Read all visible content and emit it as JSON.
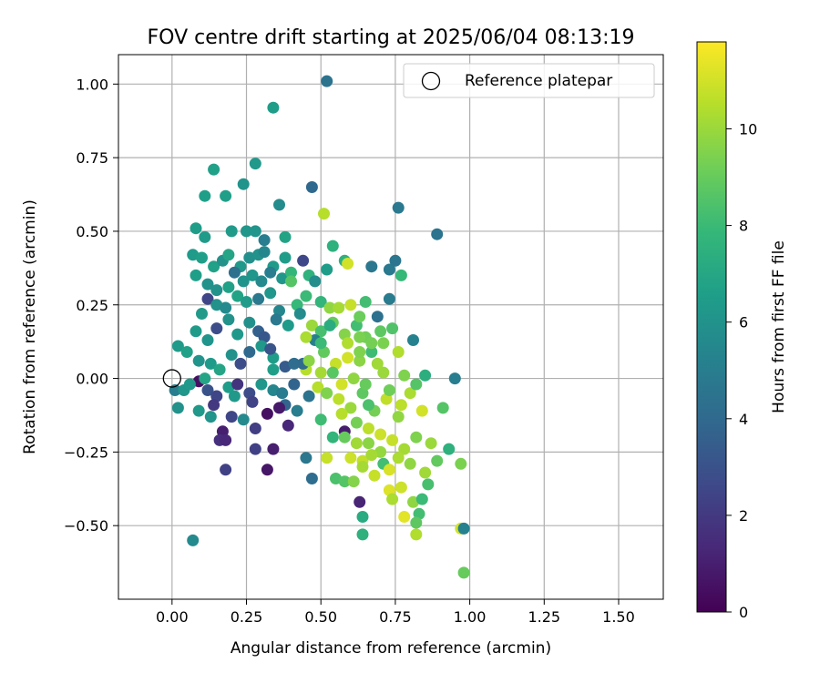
{
  "chart_data": {
    "type": "scatter",
    "title": "FOV centre drift starting at 2025/06/04 08:13:19",
    "xlabel": "Angular distance from reference (arcmin)",
    "ylabel": "Rotation from reference (arcmin)",
    "xlim": [
      -0.18,
      1.65
    ],
    "ylim": [
      -0.75,
      1.1
    ],
    "x_ticks": [
      "0.00",
      "0.25",
      "0.50",
      "0.75",
      "1.00",
      "1.25",
      "1.50"
    ],
    "y_ticks": [
      "−0.50",
      "−0.25",
      "0.00",
      "0.25",
      "0.50",
      "0.75",
      "1.00"
    ],
    "grid": true,
    "legend": {
      "position": "top-right",
      "entries": [
        {
          "label": "Reference platepar",
          "marker": "open-circle",
          "x": 0.0,
          "y": 0.0
        }
      ]
    },
    "colorbar": {
      "label": "Hours from first FF file",
      "range": [
        0,
        11.8
      ],
      "ticks": [
        "0",
        "2",
        "4",
        "6",
        "8",
        "10"
      ],
      "colormap": "viridis"
    },
    "points": [
      [
        0.52,
        1.01,
        4.5
      ],
      [
        0.34,
        0.92,
        6.5
      ],
      [
        0.28,
        0.73,
        6.3
      ],
      [
        0.14,
        0.71,
        6.7
      ],
      [
        0.24,
        0.66,
        6.1
      ],
      [
        0.47,
        0.65,
        4.0
      ],
      [
        0.11,
        0.62,
        6.6
      ],
      [
        0.18,
        0.62,
        6.6
      ],
      [
        0.36,
        0.59,
        5.7
      ],
      [
        0.76,
        0.58,
        4.8
      ],
      [
        0.51,
        0.56,
        10.5
      ],
      [
        0.89,
        0.49,
        4.5
      ],
      [
        0.08,
        0.51,
        6.5
      ],
      [
        0.11,
        0.48,
        6.4
      ],
      [
        0.2,
        0.5,
        6.4
      ],
      [
        0.25,
        0.5,
        6.2
      ],
      [
        0.28,
        0.5,
        6.1
      ],
      [
        0.38,
        0.48,
        6.8
      ],
      [
        0.54,
        0.45,
        7.5
      ],
      [
        0.31,
        0.47,
        5.0
      ],
      [
        0.07,
        0.42,
        6.4
      ],
      [
        0.1,
        0.41,
        6.6
      ],
      [
        0.14,
        0.38,
        6.7
      ],
      [
        0.17,
        0.4,
        6.0
      ],
      [
        0.19,
        0.42,
        6.9
      ],
      [
        0.23,
        0.38,
        6.3
      ],
      [
        0.26,
        0.41,
        5.9
      ],
      [
        0.29,
        0.42,
        6.0
      ],
      [
        0.31,
        0.43,
        5.5
      ],
      [
        0.34,
        0.38,
        6.4
      ],
      [
        0.38,
        0.41,
        6.5
      ],
      [
        0.44,
        0.4,
        2.6
      ],
      [
        0.58,
        0.4,
        7.5
      ],
      [
        0.59,
        0.39,
        11.0
      ],
      [
        0.67,
        0.38,
        4.7
      ],
      [
        0.73,
        0.37,
        4.8
      ],
      [
        0.75,
        0.4,
        4.6
      ],
      [
        0.77,
        0.35,
        7.9
      ],
      [
        0.08,
        0.35,
        6.6
      ],
      [
        0.12,
        0.32,
        6.0
      ],
      [
        0.15,
        0.3,
        6.0
      ],
      [
        0.19,
        0.31,
        6.7
      ],
      [
        0.21,
        0.36,
        4.4
      ],
      [
        0.24,
        0.33,
        6.1
      ],
      [
        0.27,
        0.35,
        6.2
      ],
      [
        0.3,
        0.33,
        5.6
      ],
      [
        0.33,
        0.36,
        5.0
      ],
      [
        0.37,
        0.34,
        6.2
      ],
      [
        0.4,
        0.36,
        7.8
      ],
      [
        0.46,
        0.35,
        7.6
      ],
      [
        0.48,
        0.33,
        5.8
      ],
      [
        0.52,
        0.37,
        6.5
      ],
      [
        0.1,
        0.22,
        6.4
      ],
      [
        0.12,
        0.27,
        2.5
      ],
      [
        0.15,
        0.25,
        6.0
      ],
      [
        0.18,
        0.24,
        5.6
      ],
      [
        0.22,
        0.28,
        6.8
      ],
      [
        0.25,
        0.26,
        6.4
      ],
      [
        0.29,
        0.27,
        4.8
      ],
      [
        0.33,
        0.29,
        6.2
      ],
      [
        0.36,
        0.23,
        5.5
      ],
      [
        0.42,
        0.25,
        7.9
      ],
      [
        0.45,
        0.28,
        8.0
      ],
      [
        0.5,
        0.26,
        7.7
      ],
      [
        0.53,
        0.24,
        9.8
      ],
      [
        0.56,
        0.24,
        10.2
      ],
      [
        0.6,
        0.25,
        10.8
      ],
      [
        0.65,
        0.26,
        8.2
      ],
      [
        0.69,
        0.21,
        4.4
      ],
      [
        0.73,
        0.27,
        4.9
      ],
      [
        0.08,
        0.16,
        6.4
      ],
      [
        0.12,
        0.13,
        6.1
      ],
      [
        0.15,
        0.17,
        2.8
      ],
      [
        0.19,
        0.2,
        6.0
      ],
      [
        0.22,
        0.15,
        6.3
      ],
      [
        0.26,
        0.19,
        5.9
      ],
      [
        0.29,
        0.16,
        3.6
      ],
      [
        0.31,
        0.14,
        3.2
      ],
      [
        0.35,
        0.2,
        4.8
      ],
      [
        0.39,
        0.18,
        6.4
      ],
      [
        0.43,
        0.22,
        5.7
      ],
      [
        0.47,
        0.18,
        10.0
      ],
      [
        0.5,
        0.16,
        8.3
      ],
      [
        0.54,
        0.19,
        9.0
      ],
      [
        0.58,
        0.15,
        9.6
      ],
      [
        0.62,
        0.18,
        8.2
      ],
      [
        0.65,
        0.14,
        9.2
      ],
      [
        0.7,
        0.16,
        8.8
      ],
      [
        0.74,
        0.17,
        8.5
      ],
      [
        0.02,
        0.11,
        6.4
      ],
      [
        0.05,
        0.09,
        6.7
      ],
      [
        0.09,
        0.06,
        6.1
      ],
      [
        0.13,
        0.05,
        6.4
      ],
      [
        0.16,
        0.03,
        6.9
      ],
      [
        0.2,
        0.08,
        6.0
      ],
      [
        0.23,
        0.05,
        2.8
      ],
      [
        0.26,
        0.09,
        4.0
      ],
      [
        0.3,
        0.11,
        6.3
      ],
      [
        0.34,
        0.07,
        6.5
      ],
      [
        0.38,
        0.04,
        3.4
      ],
      [
        0.41,
        0.05,
        4.2
      ],
      [
        0.45,
        0.03,
        10.5
      ],
      [
        0.48,
        0.13,
        5.1
      ],
      [
        0.51,
        0.09,
        8.9
      ],
      [
        0.55,
        0.05,
        10.8
      ],
      [
        0.59,
        0.07,
        11.0
      ],
      [
        0.63,
        0.06,
        9.7
      ],
      [
        0.67,
        0.09,
        8.1
      ],
      [
        0.71,
        0.02,
        10.0
      ],
      [
        0.76,
        0.09,
        10.4
      ],
      [
        0.81,
        0.13,
        5.2
      ],
      [
        0.85,
        0.01,
        7.4
      ],
      [
        0.95,
        0.0,
        5.0
      ],
      [
        0.01,
        -0.04,
        5.0
      ],
      [
        0.04,
        -0.04,
        6.2
      ],
      [
        0.09,
        -0.01,
        0.5
      ],
      [
        0.12,
        -0.04,
        3.0
      ],
      [
        0.15,
        -0.06,
        2.5
      ],
      [
        0.19,
        -0.03,
        6.5
      ],
      [
        0.22,
        -0.02,
        1.8
      ],
      [
        0.26,
        -0.05,
        2.8
      ],
      [
        0.3,
        -0.02,
        6.2
      ],
      [
        0.34,
        -0.04,
        5.5
      ],
      [
        0.38,
        -0.09,
        3.8
      ],
      [
        0.42,
        -0.11,
        5.0
      ],
      [
        0.46,
        -0.06,
        4.5
      ],
      [
        0.49,
        -0.03,
        10.5
      ],
      [
        0.52,
        -0.05,
        9.5
      ],
      [
        0.56,
        -0.07,
        10.6
      ],
      [
        0.6,
        -0.1,
        10.0
      ],
      [
        0.64,
        -0.05,
        8.8
      ],
      [
        0.68,
        -0.11,
        9.3
      ],
      [
        0.72,
        -0.07,
        10.7
      ],
      [
        0.76,
        -0.13,
        9.8
      ],
      [
        0.8,
        -0.05,
        10.3
      ],
      [
        0.84,
        -0.11,
        11.0
      ],
      [
        0.91,
        -0.1,
        8.6
      ],
      [
        0.02,
        -0.1,
        6.0
      ],
      [
        0.09,
        -0.11,
        6.3
      ],
      [
        0.13,
        -0.13,
        6.1
      ],
      [
        0.17,
        -0.18,
        1.0
      ],
      [
        0.2,
        -0.13,
        2.5
      ],
      [
        0.24,
        -0.14,
        5.6
      ],
      [
        0.28,
        -0.17,
        2.2
      ],
      [
        0.32,
        -0.12,
        0.5
      ],
      [
        0.36,
        -0.1,
        0.8
      ],
      [
        0.39,
        -0.16,
        1.3
      ],
      [
        0.5,
        -0.14,
        8.1
      ],
      [
        0.54,
        -0.2,
        7.7
      ],
      [
        0.58,
        -0.18,
        0.9
      ],
      [
        0.62,
        -0.22,
        10.1
      ],
      [
        0.66,
        -0.17,
        10.6
      ],
      [
        0.7,
        -0.25,
        9.9
      ],
      [
        0.74,
        -0.21,
        10.8
      ],
      [
        0.78,
        -0.24,
        10.2
      ],
      [
        0.82,
        -0.2,
        9.5
      ],
      [
        0.87,
        -0.22,
        10.0
      ],
      [
        0.93,
        -0.24,
        7.5
      ],
      [
        0.16,
        -0.21,
        1.6
      ],
      [
        0.18,
        -0.21,
        1.3
      ],
      [
        0.28,
        -0.24,
        2.3
      ],
      [
        0.34,
        -0.24,
        1.0
      ],
      [
        0.45,
        -0.27,
        4.7
      ],
      [
        0.52,
        -0.27,
        10.8
      ],
      [
        0.58,
        -0.2,
        9.0
      ],
      [
        0.64,
        -0.28,
        10.7
      ],
      [
        0.67,
        -0.26,
        10.2
      ],
      [
        0.71,
        -0.29,
        8.2
      ],
      [
        0.76,
        -0.27,
        10.3
      ],
      [
        0.8,
        -0.29,
        9.8
      ],
      [
        0.85,
        -0.32,
        10.1
      ],
      [
        0.89,
        -0.28,
        8.9
      ],
      [
        0.97,
        -0.29,
        9.4
      ],
      [
        0.18,
        -0.31,
        2.3
      ],
      [
        0.32,
        -0.31,
        0.7
      ],
      [
        0.47,
        -0.34,
        4.2
      ],
      [
        0.55,
        -0.34,
        8.4
      ],
      [
        0.58,
        -0.35,
        8.6
      ],
      [
        0.61,
        -0.35,
        9.6
      ],
      [
        0.64,
        -0.3,
        10.2
      ],
      [
        0.68,
        -0.33,
        10.8
      ],
      [
        0.73,
        -0.38,
        11.2
      ],
      [
        0.77,
        -0.37,
        10.9
      ],
      [
        0.81,
        -0.42,
        9.8
      ],
      [
        0.84,
        -0.41,
        8.0
      ],
      [
        0.74,
        -0.41,
        10.3
      ],
      [
        0.78,
        -0.47,
        11.3
      ],
      [
        0.63,
        -0.42,
        1.2
      ],
      [
        0.64,
        -0.47,
        7.2
      ],
      [
        0.83,
        -0.46,
        8.2
      ],
      [
        0.82,
        -0.49,
        8.8
      ],
      [
        0.07,
        -0.55,
        5.6
      ],
      [
        0.64,
        -0.53,
        7.5
      ],
      [
        0.82,
        -0.53,
        10.4
      ],
      [
        0.97,
        -0.51,
        11.0
      ],
      [
        0.98,
        -0.51,
        5.2
      ],
      [
        0.98,
        -0.66,
        9.0
      ],
      [
        0.34,
        0.03,
        6.6
      ],
      [
        0.44,
        0.05,
        4.1
      ],
      [
        0.53,
        0.18,
        7.3
      ],
      [
        0.57,
        -0.12,
        10.5
      ],
      [
        0.61,
        0.0,
        9.8
      ],
      [
        0.65,
        -0.02,
        9.0
      ],
      [
        0.69,
        0.05,
        10.1
      ],
      [
        0.73,
        -0.04,
        9.2
      ],
      [
        0.77,
        -0.09,
        10.6
      ],
      [
        0.63,
        0.21,
        9.1
      ],
      [
        0.71,
        0.12,
        9.4
      ],
      [
        0.57,
        -0.02,
        11.0
      ],
      [
        0.62,
        -0.15,
        9.3
      ],
      [
        0.66,
        -0.09,
        8.4
      ],
      [
        0.7,
        -0.19,
        10.9
      ],
      [
        0.78,
        0.01,
        9.5
      ],
      [
        0.82,
        -0.02,
        8.6
      ],
      [
        0.06,
        -0.02,
        6.3
      ],
      [
        0.11,
        0.0,
        6.9
      ],
      [
        0.14,
        -0.09,
        2.0
      ],
      [
        0.21,
        -0.06,
        6.3
      ],
      [
        0.27,
        -0.08,
        2.4
      ],
      [
        0.33,
        0.1,
        3.1
      ],
      [
        0.37,
        -0.05,
        4.9
      ],
      [
        0.41,
        -0.02,
        3.8
      ],
      [
        0.46,
        0.06,
        9.7
      ],
      [
        0.5,
        0.02,
        10.2
      ],
      [
        0.54,
        0.02,
        8.7
      ],
      [
        0.59,
        0.12,
        10.4
      ],
      [
        0.63,
        0.09,
        9.5
      ],
      [
        0.67,
        0.12,
        9.3
      ],
      [
        0.66,
        -0.22,
        9.7
      ],
      [
        0.6,
        -0.27,
        10.9
      ],
      [
        0.73,
        -0.31,
        11.1
      ],
      [
        0.86,
        -0.36,
        8.3
      ],
      [
        0.4,
        0.33,
        8.6
      ],
      [
        0.5,
        0.12,
        8.0
      ],
      [
        0.45,
        0.14,
        10.3
      ],
      [
        0.63,
        0.14,
        9.4
      ]
    ]
  }
}
